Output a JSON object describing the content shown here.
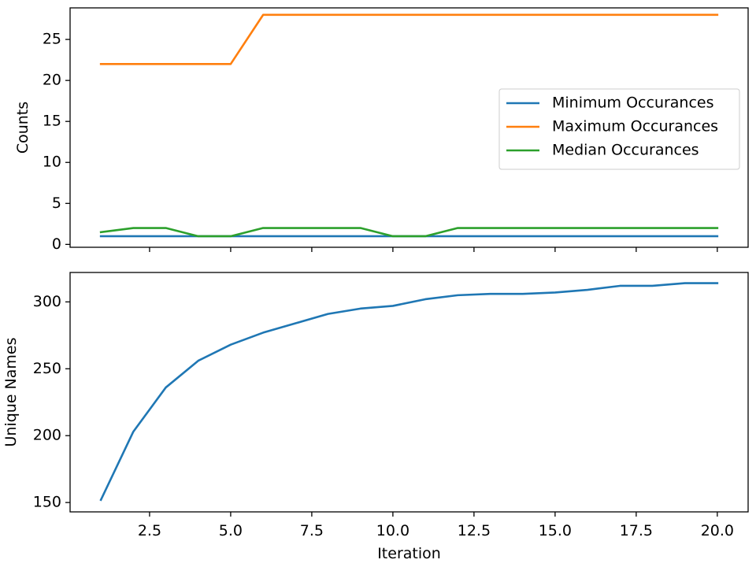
{
  "chart_data": [
    {
      "type": "line",
      "xlabel": "",
      "ylabel": "Counts",
      "xlim": [
        0.05,
        20.95
      ],
      "ylim": [
        -0.35,
        28.85
      ],
      "x_ticks": [
        2.5,
        5.0,
        7.5,
        10.0,
        12.5,
        15.0,
        17.5,
        20.0
      ],
      "x_tick_labels_shown": false,
      "y_ticks": [
        0,
        5,
        10,
        15,
        20,
        25
      ],
      "y_tick_labels": [
        "0",
        "5",
        "10",
        "15",
        "20",
        "25"
      ],
      "grid": false,
      "legend_placement": "center-right",
      "x": [
        1,
        2,
        3,
        4,
        5,
        6,
        7,
        8,
        9,
        10,
        11,
        12,
        13,
        14,
        15,
        16,
        17,
        18,
        19,
        20
      ],
      "series": [
        {
          "name": "Minimum Occurances",
          "color": "#1f77b4",
          "values": [
            1,
            1,
            1,
            1,
            1,
            1,
            1,
            1,
            1,
            1,
            1,
            1,
            1,
            1,
            1,
            1,
            1,
            1,
            1,
            1
          ]
        },
        {
          "name": "Maximum Occurances",
          "color": "#ff7f0e",
          "values": [
            22,
            22,
            22,
            22,
            22,
            28,
            28,
            28,
            28,
            28,
            28,
            28,
            28,
            28,
            28,
            28,
            28,
            28,
            28,
            28
          ]
        },
        {
          "name": "Median Occurances",
          "color": "#2ca02c",
          "values": [
            1.5,
            2,
            2,
            1,
            1,
            2,
            2,
            2,
            2,
            1,
            1,
            2,
            2,
            2,
            2,
            2,
            2,
            2,
            2,
            2
          ]
        }
      ]
    },
    {
      "type": "line",
      "xlabel": "Iteration",
      "ylabel": "Unique Names",
      "xlim": [
        0.05,
        20.95
      ],
      "ylim": [
        143,
        322
      ],
      "x_ticks": [
        2.5,
        5.0,
        7.5,
        10.0,
        12.5,
        15.0,
        17.5,
        20.0
      ],
      "x_tick_labels": [
        "2.5",
        "5.0",
        "7.5",
        "10.0",
        "12.5",
        "15.0",
        "17.5",
        "20.0"
      ],
      "x_tick_labels_shown": true,
      "y_ticks": [
        150,
        200,
        250,
        300
      ],
      "y_tick_labels": [
        "150",
        "200",
        "250",
        "300"
      ],
      "grid": false,
      "x": [
        1,
        2,
        3,
        4,
        5,
        6,
        7,
        8,
        9,
        10,
        11,
        12,
        13,
        14,
        15,
        16,
        17,
        18,
        19,
        20
      ],
      "series": [
        {
          "color": "#1f77b4",
          "values": [
            152,
            203,
            236,
            256,
            268,
            277,
            284,
            291,
            295,
            297,
            302,
            305,
            306,
            306,
            307,
            309,
            312,
            312,
            314,
            314
          ]
        }
      ]
    }
  ]
}
